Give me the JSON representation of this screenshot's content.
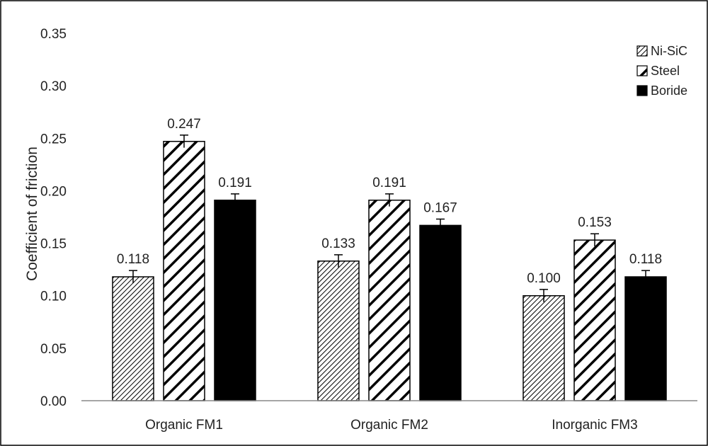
{
  "chart_data": {
    "type": "bar",
    "title": "",
    "xlabel": "",
    "ylabel": "Coefficient of friction",
    "ylim": [
      0,
      0.35
    ],
    "yticks": [
      0.0,
      0.05,
      0.1,
      0.15,
      0.2,
      0.25,
      0.3,
      0.35
    ],
    "ytick_labels": [
      "0.00",
      "0.05",
      "0.10",
      "0.15",
      "0.20",
      "0.25",
      "0.30",
      "0.35"
    ],
    "grid": false,
    "legend_position": "top-right",
    "categories": [
      "Organic FM1",
      "Organic FM2",
      "Inorganic FM3"
    ],
    "series": [
      {
        "name": "Ni-SiC",
        "pattern": "dense-diagonal-hatch",
        "color": "#000000",
        "values": [
          0.118,
          0.133,
          0.1
        ],
        "labels": [
          "0.118",
          "0.133",
          "0.100"
        ],
        "errors": [
          0.006,
          0.006,
          0.006
        ]
      },
      {
        "name": "Steel",
        "pattern": "wide-diagonal-hatch",
        "color": "#000000",
        "values": [
          0.247,
          0.191,
          0.153
        ],
        "labels": [
          "0.247",
          "0.191",
          "0.153"
        ],
        "errors": [
          0.006,
          0.006,
          0.006
        ]
      },
      {
        "name": "Boride",
        "pattern": "solid",
        "color": "#000000",
        "values": [
          0.191,
          0.167,
          0.118
        ],
        "labels": [
          "0.191",
          "0.167",
          "0.118"
        ],
        "errors": [
          0.006,
          0.006,
          0.006
        ]
      }
    ]
  }
}
